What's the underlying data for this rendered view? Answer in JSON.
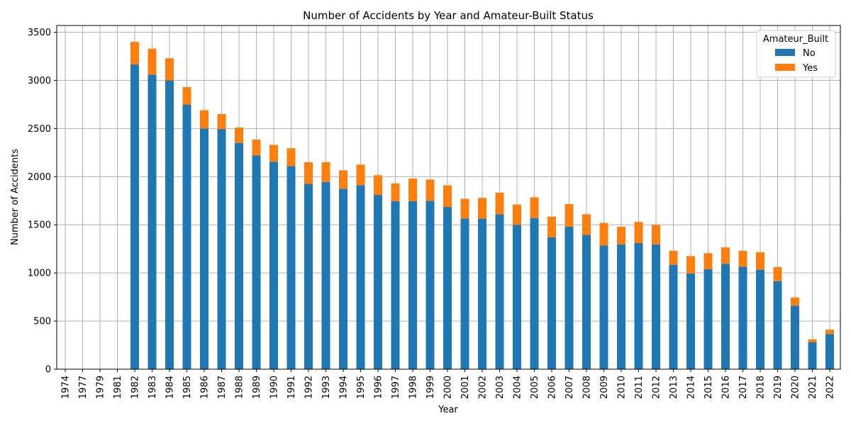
{
  "chart_data": {
    "type": "bar",
    "stacked": true,
    "title": "Number of Accidents by Year and Amateur-Built Status",
    "xlabel": "Year",
    "ylabel": "Number of Accidents",
    "ylim": [
      0,
      3570
    ],
    "yticks": [
      0,
      500,
      1000,
      1500,
      2000,
      2500,
      3000,
      3500
    ],
    "grid": true,
    "legend": {
      "title": "Amateur_Built",
      "placement": "top-right"
    },
    "categories": [
      "1974",
      "1977",
      "1979",
      "1981",
      "1982",
      "1983",
      "1984",
      "1985",
      "1986",
      "1987",
      "1988",
      "1989",
      "1990",
      "1991",
      "1992",
      "1993",
      "1994",
      "1995",
      "1996",
      "1997",
      "1998",
      "1999",
      "2000",
      "2001",
      "2002",
      "2003",
      "2004",
      "2005",
      "2006",
      "2007",
      "2008",
      "2009",
      "2010",
      "2011",
      "2012",
      "2013",
      "2014",
      "2015",
      "2016",
      "2017",
      "2018",
      "2019",
      "2020",
      "2021",
      "2022"
    ],
    "series": [
      {
        "name": "No",
        "color": "#1f77b4",
        "values": [
          1,
          1,
          1,
          1,
          3165,
          3060,
          3000,
          2750,
          2500,
          2495,
          2350,
          2220,
          2155,
          2110,
          1925,
          1945,
          1875,
          1910,
          1810,
          1745,
          1745,
          1750,
          1685,
          1565,
          1565,
          1610,
          1500,
          1570,
          1370,
          1480,
          1395,
          1285,
          1295,
          1310,
          1295,
          1085,
          995,
          1040,
          1095,
          1065,
          1035,
          915,
          660,
          280,
          365
        ]
      },
      {
        "name": "Yes",
        "color": "#ff7f0e",
        "values": [
          0,
          0,
          0,
          0,
          235,
          270,
          230,
          180,
          190,
          155,
          160,
          165,
          175,
          185,
          225,
          205,
          190,
          215,
          205,
          185,
          235,
          220,
          225,
          205,
          215,
          225,
          210,
          215,
          215,
          235,
          215,
          235,
          185,
          220,
          205,
          145,
          180,
          165,
          170,
          165,
          180,
          145,
          85,
          30,
          45
        ]
      }
    ]
  }
}
